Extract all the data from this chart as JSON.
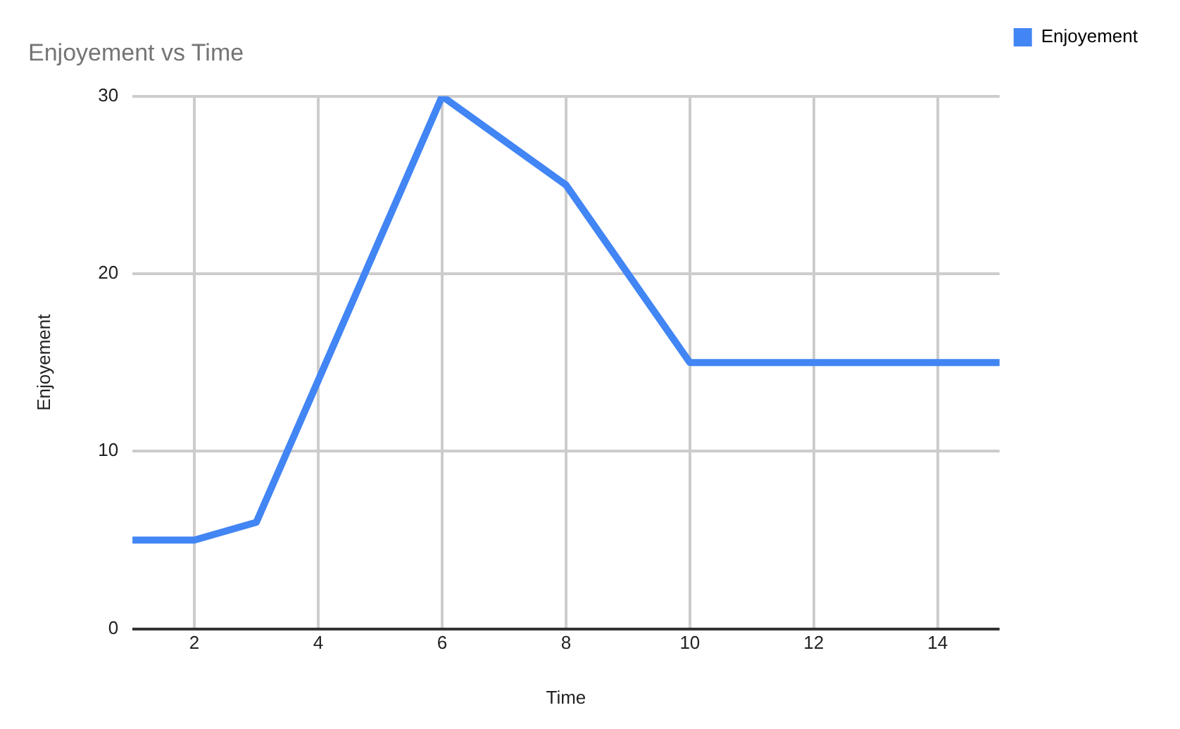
{
  "chart_data": {
    "type": "line",
    "title": "Enjoyement vs Time",
    "xlabel": "Time",
    "ylabel": "Enjoyement",
    "x": [
      1,
      2,
      3,
      4,
      5,
      6,
      7,
      8,
      9,
      10,
      11,
      12,
      13,
      14,
      15
    ],
    "series": [
      {
        "name": "Enjoyement",
        "color": "#4285f4",
        "values": [
          5,
          5,
          6,
          14,
          22,
          30,
          27.5,
          25,
          20,
          15,
          15,
          15,
          15,
          15,
          15
        ]
      }
    ],
    "xlim": [
      1,
      15
    ],
    "xticks": [
      2,
      4,
      6,
      8,
      10,
      12,
      14
    ],
    "ylim": [
      0,
      30
    ],
    "yticks": [
      0,
      10,
      20,
      30
    ],
    "grid": true,
    "legend": "top right",
    "marker": "none",
    "line_style": "solid"
  }
}
